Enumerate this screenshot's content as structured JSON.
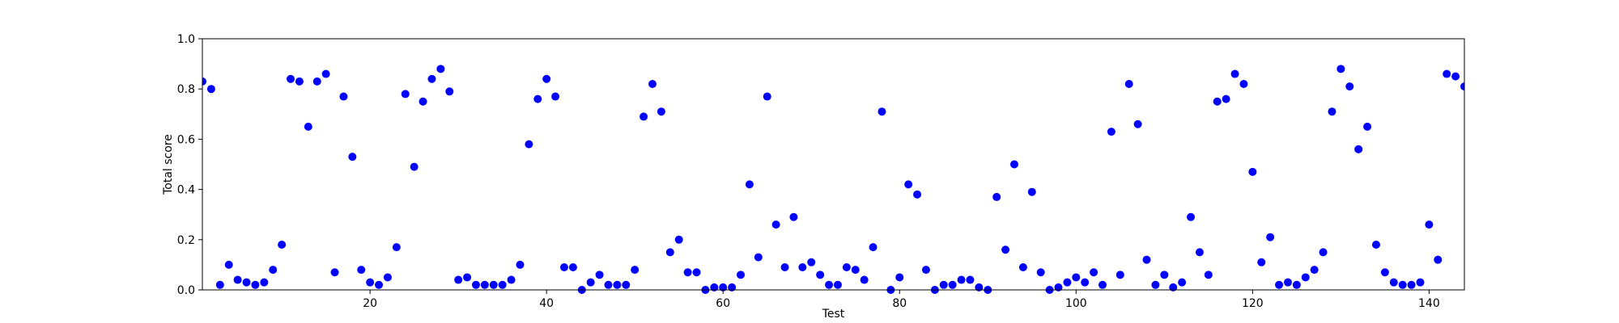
{
  "chart_data": {
    "type": "scatter",
    "xlabel": "Test",
    "ylabel": "Total score",
    "xlim": [
      1,
      144
    ],
    "ylim": [
      0,
      1
    ],
    "xticks": [
      20,
      40,
      60,
      80,
      100,
      120,
      140
    ],
    "yticks": [
      0.0,
      0.2,
      0.4,
      0.6,
      0.8,
      1.0
    ],
    "grid": false,
    "marker_color": "#0000ff",
    "series": [
      {
        "x": [
          1,
          2,
          3,
          4,
          5,
          6,
          7,
          8,
          9,
          10,
          11,
          12,
          13,
          14,
          15,
          16,
          17,
          18,
          19,
          20,
          21,
          22,
          23,
          24,
          25,
          26,
          27,
          28,
          29,
          30,
          31,
          32,
          33,
          34,
          35,
          36,
          37,
          38,
          39,
          40,
          41,
          42,
          43,
          44,
          45,
          46,
          47,
          48,
          49,
          50,
          51,
          52,
          53,
          54,
          55,
          56,
          57,
          58,
          59,
          60,
          61,
          62,
          63,
          64,
          65,
          66,
          67,
          68,
          69,
          70,
          71,
          72,
          73,
          74,
          75,
          76,
          77,
          78,
          79,
          80,
          81,
          82,
          83,
          84,
          85,
          86,
          87,
          88,
          89,
          90,
          91,
          92,
          93,
          94,
          95,
          96,
          97,
          98,
          99,
          100,
          101,
          102,
          103,
          104,
          105,
          106,
          107,
          108,
          109,
          110,
          111,
          112,
          113,
          114,
          115,
          116,
          117,
          118,
          119,
          120,
          121,
          122,
          123,
          124,
          125,
          126,
          127,
          128,
          129,
          130,
          131,
          132,
          133,
          134,
          135,
          136,
          137,
          138,
          139,
          140,
          141,
          142,
          143,
          144
        ],
        "y": [
          0.83,
          0.8,
          0.02,
          0.1,
          0.04,
          0.03,
          0.02,
          0.03,
          0.08,
          0.18,
          0.84,
          0.83,
          0.65,
          0.83,
          0.86,
          0.07,
          0.77,
          0.53,
          0.08,
          0.03,
          0.02,
          0.05,
          0.17,
          0.78,
          0.49,
          0.75,
          0.84,
          0.88,
          0.79,
          0.04,
          0.05,
          0.02,
          0.02,
          0.02,
          0.02,
          0.04,
          0.1,
          0.58,
          0.76,
          0.84,
          0.77,
          0.09,
          0.09,
          0.0,
          0.03,
          0.06,
          0.02,
          0.02,
          0.02,
          0.08,
          0.69,
          0.82,
          0.71,
          0.15,
          0.2,
          0.07,
          0.07,
          0.0,
          0.01,
          0.01,
          0.01,
          0.06,
          0.42,
          0.13,
          0.77,
          0.26,
          0.09,
          0.29,
          0.09,
          0.11,
          0.06,
          0.02,
          0.02,
          0.09,
          0.08,
          0.04,
          0.17,
          0.71,
          0.0,
          0.05,
          0.42,
          0.38,
          0.08,
          0.0,
          0.02,
          0.02,
          0.04,
          0.04,
          0.01,
          0.0,
          0.37,
          0.16,
          0.5,
          0.09,
          0.39,
          0.07,
          0.0,
          0.01,
          0.03,
          0.05,
          0.03,
          0.07,
          0.02,
          0.63,
          0.06,
          0.82,
          0.66,
          0.12,
          0.02,
          0.06,
          0.01,
          0.03,
          0.29,
          0.15,
          0.06,
          0.75,
          0.76,
          0.86,
          0.82,
          0.47,
          0.11,
          0.21,
          0.02,
          0.03,
          0.02,
          0.05,
          0.08,
          0.15,
          0.71,
          0.88,
          0.81,
          0.56,
          0.65,
          0.18,
          0.07,
          0.03,
          0.02,
          0.02,
          0.03,
          0.26,
          0.12,
          0.86,
          0.85,
          0.81
        ]
      }
    ]
  }
}
